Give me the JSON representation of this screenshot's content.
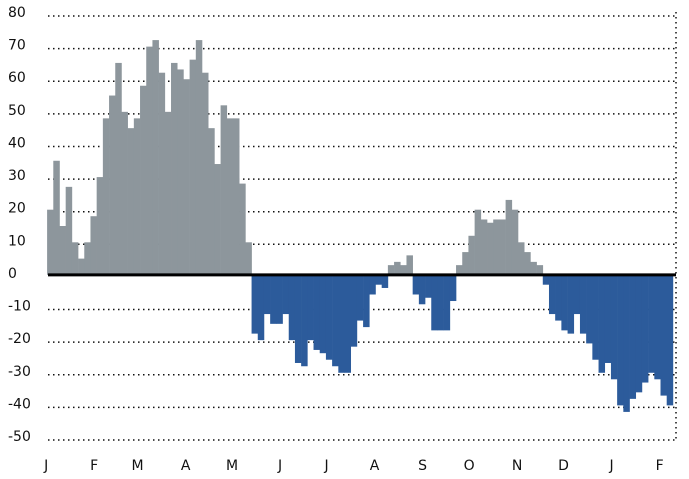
{
  "chart_data": {
    "type": "bar",
    "x": [
      0,
      4,
      8,
      12,
      16,
      20,
      24,
      28,
      32,
      36,
      40,
      44,
      48,
      52,
      56,
      60,
      64,
      68,
      72,
      76,
      80,
      84,
      88,
      92,
      96,
      100,
      104,
      108,
      112,
      116,
      120,
      124,
      128,
      132,
      136,
      140,
      144,
      148,
      152,
      156,
      160,
      164,
      168,
      172,
      176,
      180,
      184,
      188,
      192,
      196,
      200,
      204,
      208,
      212,
      216,
      220,
      224,
      228,
      232,
      236,
      240,
      244,
      248,
      252,
      256,
      260,
      264,
      268,
      272,
      276,
      280,
      284,
      288,
      292,
      296,
      300,
      304,
      308,
      312,
      316,
      320,
      324,
      328,
      332,
      336,
      340,
      344,
      348,
      352,
      356,
      360,
      364,
      368,
      372,
      376,
      380,
      384,
      388,
      392,
      396,
      400
    ],
    "values": [
      20,
      35,
      15,
      27,
      10,
      5,
      10,
      18,
      30,
      48,
      55,
      65,
      50,
      45,
      48,
      58,
      70,
      72,
      62,
      50,
      65,
      63,
      60,
      66,
      72,
      62,
      45,
      34,
      52,
      48,
      48,
      28,
      10,
      -18,
      -20,
      -12,
      -15,
      -15,
      -12,
      -20,
      -27,
      -28,
      -20,
      -23,
      -24,
      -26,
      -28,
      -30,
      -30,
      -22,
      -14,
      -16,
      -6,
      -3,
      -4,
      3,
      4,
      3,
      6,
      -6,
      -9,
      -7,
      -17,
      -17,
      -17,
      -8,
      3,
      7,
      12,
      20,
      17,
      16,
      17,
      17,
      23,
      20,
      10,
      7,
      4,
      3,
      -3,
      -12,
      -14,
      -17,
      -18,
      -12,
      -18,
      -21,
      -26,
      -30,
      -27,
      -32,
      -40,
      -42,
      -38,
      -36,
      -33,
      -30,
      -32,
      -37,
      -40
    ],
    "colors": {
      "positive": "#8d969c",
      "negative": "#2c5b9b"
    },
    "xlim": [
      -4,
      404
    ],
    "xticks": [
      {
        "value": 0,
        "label": "J"
      },
      {
        "value": 31,
        "label": "F"
      },
      {
        "value": 59,
        "label": "M"
      },
      {
        "value": 90,
        "label": "A"
      },
      {
        "value": 120,
        "label": "M"
      },
      {
        "value": 151,
        "label": "J"
      },
      {
        "value": 181,
        "label": "J"
      },
      {
        "value": 212,
        "label": "A"
      },
      {
        "value": 243,
        "label": "S"
      },
      {
        "value": 273,
        "label": "O"
      },
      {
        "value": 304,
        "label": "N"
      },
      {
        "value": 334,
        "label": "D"
      },
      {
        "value": 365,
        "label": "J"
      },
      {
        "value": 396,
        "label": "F"
      }
    ],
    "ylim": [
      -50,
      80
    ],
    "yticks": [
      80,
      70,
      60,
      50,
      40,
      30,
      20,
      10,
      0,
      -10,
      -20,
      -30,
      -40,
      -50
    ],
    "grid": true
  }
}
